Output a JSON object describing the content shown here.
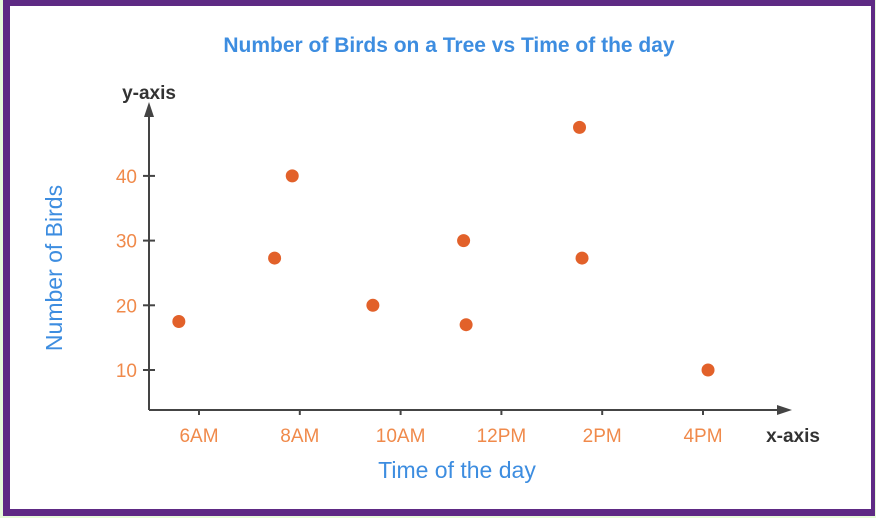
{
  "colors": {
    "frame": "#5e2a84",
    "outer": "#e6fbd9",
    "title": "#3d8de0",
    "tick_label": "#f08a4b",
    "axis": "#444444",
    "point": "#e2612a"
  },
  "chart_data": {
    "type": "scatter",
    "title": "Number of Birds on a Tree vs Time of the day",
    "xlabel": "Time of the day",
    "ylabel": "Number of Birds",
    "x_axis_name": "x-axis",
    "y_axis_name": "y-axis",
    "x_ticks": [
      {
        "label": "6AM",
        "value": 6
      },
      {
        "label": "8AM",
        "value": 8
      },
      {
        "label": "10AM",
        "value": 10
      },
      {
        "label": "12PM",
        "value": 12
      },
      {
        "label": "2PM",
        "value": 14
      },
      {
        "label": "4PM",
        "value": 16
      }
    ],
    "y_ticks": [
      10,
      20,
      30,
      40
    ],
    "grid": false,
    "legend": null,
    "xlim": [
      5,
      17.8
    ],
    "ylim": [
      3.8,
      51
    ],
    "x_unit": "hour of day (24h)",
    "points": [
      {
        "x": 5.6,
        "y": 17.5
      },
      {
        "x": 7.5,
        "y": 27.3
      },
      {
        "x": 7.85,
        "y": 40
      },
      {
        "x": 9.45,
        "y": 20
      },
      {
        "x": 11.25,
        "y": 30
      },
      {
        "x": 11.3,
        "y": 17
      },
      {
        "x": 13.55,
        "y": 47.5
      },
      {
        "x": 13.6,
        "y": 27.3
      },
      {
        "x": 16.1,
        "y": 10
      }
    ]
  }
}
